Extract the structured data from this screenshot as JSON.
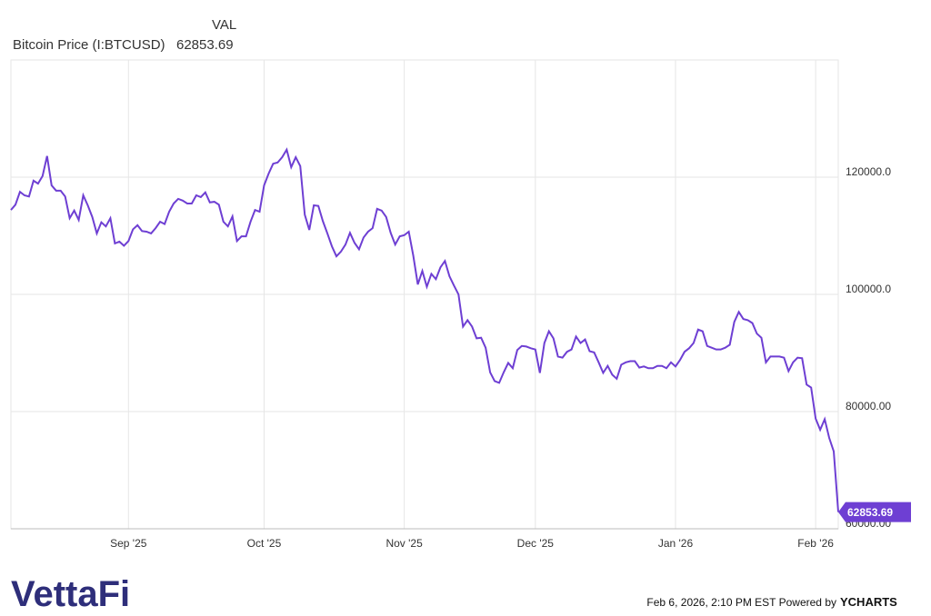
{
  "chart_data": {
    "type": "line",
    "header": "VAL",
    "series": [
      {
        "name": "Bitcoin Price (I:BTCUSD)",
        "color": "#6e3fd3",
        "values": [
          114400,
          115300,
          117500,
          116900,
          116700,
          119400,
          118900,
          120200,
          123600,
          118600,
          117700,
          117700,
          116700,
          113000,
          114300,
          112700,
          116900,
          115200,
          113200,
          110400,
          112300,
          111600,
          113000,
          108700,
          109000,
          108300,
          109100,
          111100,
          111800,
          110800,
          110700,
          110400,
          111300,
          112400,
          112000,
          114100,
          115500,
          116300,
          116000,
          115500,
          115500,
          116900,
          116600,
          117400,
          115700,
          115800,
          115300,
          112400,
          111600,
          113300,
          109100,
          109900,
          109900,
          112400,
          114400,
          114100,
          118600,
          120600,
          122300,
          122500,
          123400,
          124700,
          121700,
          123400,
          121900,
          113600,
          111000,
          115200,
          115100,
          112500,
          110400,
          108200,
          106500,
          107300,
          108500,
          110500,
          108800,
          107700,
          109700,
          110700,
          111300,
          114600,
          114300,
          113200,
          110500,
          108500,
          109900,
          110100,
          110700,
          106600,
          101700,
          104000,
          101300,
          103500,
          102600,
          104600,
          105700,
          103100,
          101500,
          100000,
          94500,
          95600,
          94500,
          92500,
          92600,
          90900,
          86700,
          85200,
          84900,
          86700,
          88300,
          87400,
          90500,
          91200,
          91100,
          90800,
          90600,
          86600,
          91700,
          93700,
          92500,
          89400,
          89200,
          90200,
          90600,
          92800,
          91700,
          92300,
          90300,
          90100,
          88400,
          86600,
          87800,
          86300,
          85600,
          88000,
          88400,
          88600,
          88600,
          87500,
          87700,
          87400,
          87400,
          87800,
          87800,
          87400,
          88400,
          87700,
          88800,
          90200,
          90800,
          91700,
          94000,
          93700,
          91200,
          90900,
          90600,
          90600,
          90900,
          91400,
          95300,
          97000,
          95800,
          95600,
          95100,
          93300,
          92600,
          88400,
          89400,
          89400,
          89400,
          89200,
          86900,
          88400,
          89200,
          89100,
          84600,
          84100,
          78800,
          76900,
          78700,
          75500,
          73200,
          62853.69
        ]
      }
    ],
    "xlim": [
      0,
      183
    ],
    "xticks": [
      {
        "value": 26,
        "label": "Sep '25"
      },
      {
        "value": 56,
        "label": "Oct '25"
      },
      {
        "value": 87,
        "label": "Nov '25"
      },
      {
        "value": 116,
        "label": "Dec '25"
      },
      {
        "value": 147,
        "label": "Jan '26"
      },
      {
        "value": 178,
        "label": "Feb '26"
      }
    ],
    "ylim": [
      60000,
      140000
    ],
    "yticks": [
      {
        "value": 60000,
        "label": "60000.00"
      },
      {
        "value": 80000,
        "label": "80000.00"
      },
      {
        "value": 100000,
        "label": "100000.0"
      },
      {
        "value": 120000,
        "label": "120000.0"
      }
    ],
    "grid": true
  },
  "footer": {
    "brand": "VettaFi",
    "timestamp": "Feb 6, 2026, 2:10 PM EST Powered by",
    "provider": "YCHARTS"
  }
}
